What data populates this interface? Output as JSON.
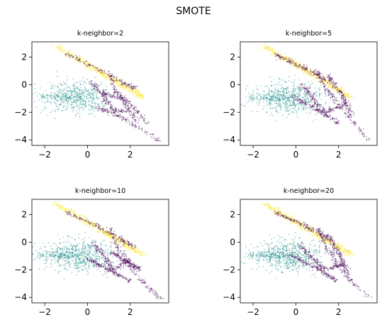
{
  "figure": {
    "title": "SMOTE"
  },
  "colors": {
    "purple": "#440154",
    "teal": "#21918c",
    "yellow": "#fde725",
    "axis": "#000000"
  },
  "chart_data": [
    {
      "type": "scatter",
      "title": "k-neighbor=2",
      "xlim": [
        -2.6,
        3.8
      ],
      "ylim": [
        -4.4,
        3.1
      ],
      "xticks": [
        -2,
        0,
        2
      ],
      "yticks": [
        -4,
        -2,
        0,
        2
      ],
      "xtick_labels": [
        "−2",
        "0",
        "2"
      ],
      "ytick_labels": [
        "−4",
        "−2",
        "0",
        "2"
      ],
      "series": [
        {
          "color": "#fde725",
          "shape": "band",
          "from": [
            -1.5,
            2.8
          ],
          "to": [
            2.6,
            -0.9
          ],
          "width": 0.3,
          "count": 500
        },
        {
          "color": "#21918c",
          "shape": "cloud",
          "center": [
            -0.5,
            -0.9
          ],
          "spread": [
            0.75,
            0.55
          ],
          "count": 600
        },
        {
          "color": "#440154",
          "shape": "paths",
          "count": 700,
          "paths": [
            [
              [
                -1.0,
                2.2
              ],
              [
                0.3,
                1.3
              ],
              [
                1.5,
                0.3
              ],
              [
                2.2,
                -0.3
              ]
            ],
            [
              [
                0.2,
                0.2
              ],
              [
                0.8,
                -1.0
              ],
              [
                1.2,
                -1.8
              ],
              [
                1.8,
                -2.0
              ]
            ],
            [
              [
                1.0,
                1.0
              ],
              [
                1.3,
                -0.5
              ],
              [
                2.0,
                -1.3
              ],
              [
                2.8,
                -2.8
              ]
            ],
            [
              [
                0.4,
                -1.6
              ],
              [
                1.4,
                -2.2
              ],
              [
                3.4,
                -4.1
              ]
            ],
            [
              [
                0.7,
                -0.6
              ],
              [
                1.6,
                -1.0
              ],
              [
                2.3,
                -2.6
              ]
            ]
          ]
        }
      ]
    },
    {
      "type": "scatter",
      "title": "k-neighbor=5",
      "xlim": [
        -2.6,
        3.8
      ],
      "ylim": [
        -4.4,
        3.1
      ],
      "xticks": [
        -2,
        0,
        2
      ],
      "yticks": [
        -4,
        -2,
        0,
        2
      ],
      "xtick_labels": [
        "−2",
        "0",
        "2"
      ],
      "ytick_labels": [
        "−4",
        "−2",
        "0",
        "2"
      ],
      "series": [
        {
          "color": "#fde725",
          "shape": "band",
          "from": [
            -1.5,
            2.8
          ],
          "to": [
            2.6,
            -0.9
          ],
          "width": 0.3,
          "count": 500
        },
        {
          "color": "#21918c",
          "shape": "cloud",
          "center": [
            -0.4,
            -1.0
          ],
          "spread": [
            0.8,
            0.6
          ],
          "count": 650
        },
        {
          "color": "#440154",
          "shape": "paths",
          "count": 800,
          "paths": [
            [
              [
                -1.0,
                2.2
              ],
              [
                0.4,
                1.2
              ],
              [
                1.6,
                0.2
              ]
            ],
            [
              [
                0.3,
                0.0
              ],
              [
                0.9,
                -1.2
              ],
              [
                1.4,
                -2.0
              ],
              [
                2.2,
                -1.5
              ]
            ],
            [
              [
                0.9,
                1.1
              ],
              [
                1.4,
                -0.3
              ],
              [
                2.2,
                -1.8
              ],
              [
                3.4,
                -4.0
              ]
            ],
            [
              [
                -0.2,
                -0.8
              ],
              [
                1.0,
                -1.8
              ],
              [
                2.0,
                -2.8
              ]
            ],
            [
              [
                1.5,
                0.6
              ],
              [
                2.1,
                -0.6
              ],
              [
                2.6,
                -2.2
              ]
            ]
          ]
        }
      ]
    },
    {
      "type": "scatter",
      "title": "k-neighbor=10",
      "xlim": [
        -2.6,
        3.8
      ],
      "ylim": [
        -4.4,
        3.1
      ],
      "xticks": [
        -2,
        0,
        2
      ],
      "yticks": [
        -4,
        -2,
        0,
        2
      ],
      "xtick_labels": [
        "−2",
        "0",
        "2"
      ],
      "ytick_labels": [
        "−4",
        "−2",
        "0",
        "2"
      ],
      "series": [
        {
          "color": "#fde725",
          "shape": "band",
          "from": [
            -1.5,
            2.8
          ],
          "to": [
            2.6,
            -0.9
          ],
          "width": 0.3,
          "count": 500
        },
        {
          "color": "#21918c",
          "shape": "cloud",
          "center": [
            -0.5,
            -1.0
          ],
          "spread": [
            0.85,
            0.6
          ],
          "count": 700
        },
        {
          "color": "#440154",
          "shape": "paths",
          "count": 800,
          "paths": [
            [
              [
                -1.0,
                2.2
              ],
              [
                0.4,
                1.2
              ],
              [
                1.6,
                0.2
              ],
              [
                2.2,
                -0.4
              ]
            ],
            [
              [
                0.2,
                0.0
              ],
              [
                0.8,
                -1.0
              ],
              [
                1.2,
                -2.1
              ],
              [
                2.0,
                -1.2
              ]
            ],
            [
              [
                1.0,
                1.0
              ],
              [
                1.5,
                -0.6
              ],
              [
                2.3,
                -2.4
              ],
              [
                3.4,
                -4.1
              ]
            ],
            [
              [
                0.0,
                -1.2
              ],
              [
                1.0,
                -2.0
              ],
              [
                2.0,
                -2.8
              ]
            ],
            [
              [
                1.2,
                -0.8
              ],
              [
                1.8,
                -1.4
              ],
              [
                2.5,
                -2.0
              ]
            ]
          ]
        }
      ]
    },
    {
      "type": "scatter",
      "title": "k-neighbor=20",
      "xlim": [
        -2.6,
        3.8
      ],
      "ylim": [
        -4.4,
        3.1
      ],
      "xticks": [
        -2,
        0,
        2
      ],
      "yticks": [
        -4,
        -2,
        0,
        2
      ],
      "xtick_labels": [
        "−2",
        "0",
        "2"
      ],
      "ytick_labels": [
        "−4",
        "−2",
        "0",
        "2"
      ],
      "series": [
        {
          "color": "#fde725",
          "shape": "band",
          "from": [
            -1.5,
            2.8
          ],
          "to": [
            2.6,
            -0.9
          ],
          "width": 0.3,
          "count": 500
        },
        {
          "color": "#21918c",
          "shape": "cloud",
          "center": [
            -0.4,
            -1.0
          ],
          "spread": [
            0.8,
            0.6
          ],
          "count": 700
        },
        {
          "color": "#440154",
          "shape": "paths",
          "count": 800,
          "paths": [
            [
              [
                -1.0,
                2.2
              ],
              [
                0.4,
                1.2
              ],
              [
                1.6,
                0.2
              ]
            ],
            [
              [
                0.2,
                -0.2
              ],
              [
                0.8,
                -1.2
              ],
              [
                1.4,
                -2.0
              ],
              [
                2.2,
                -1.6
              ]
            ],
            [
              [
                1.0,
                1.0
              ],
              [
                1.5,
                -0.5
              ],
              [
                2.2,
                -2.2
              ],
              [
                3.4,
                -4.0
              ]
            ],
            [
              [
                -0.2,
                -1.0
              ],
              [
                1.0,
                -1.9
              ],
              [
                1.9,
                -2.8
              ]
            ],
            [
              [
                1.5,
                0.5
              ],
              [
                2.0,
                -0.8
              ],
              [
                2.5,
                -2.4
              ]
            ]
          ]
        }
      ]
    }
  ]
}
